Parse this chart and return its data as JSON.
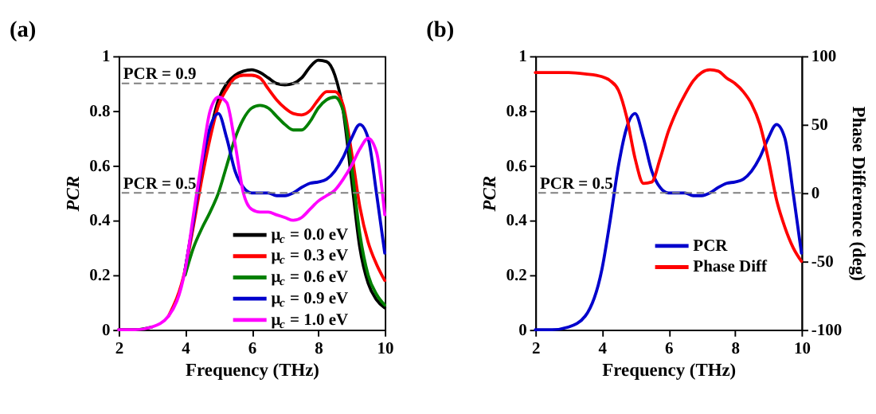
{
  "chart_data": [
    {
      "type": "line",
      "title": "(a)",
      "xlabel": "Frequency (THz)",
      "ylabel": "PCR",
      "xlim": [
        2,
        10
      ],
      "ylim": [
        0,
        1
      ],
      "xticks": [
        2,
        4,
        6,
        8,
        10
      ],
      "yticks": [
        0,
        0.2,
        0.4,
        0.6,
        0.8,
        1
      ],
      "grid": false,
      "legend": "bottom right",
      "marker": "none",
      "line_style": "solid",
      "x": [
        2,
        2.5,
        3,
        3.5,
        4,
        4.25,
        4.5,
        4.75,
        5,
        5.25,
        5.5,
        5.75,
        6,
        6.25,
        6.5,
        6.75,
        7,
        7.25,
        7.5,
        7.75,
        8,
        8.25,
        8.5,
        8.75,
        9,
        9.25,
        9.5,
        9.75,
        10
      ],
      "ref_lines": [
        {
          "axis": "y",
          "value": 0.9,
          "label": "PCR = 0.9",
          "color": "#808080",
          "line_style": "dashed"
        },
        {
          "axis": "y",
          "value": 0.5,
          "label": "PCR = 0.5",
          "color": "#808080",
          "line_style": "dashed"
        }
      ],
      "series": [
        {
          "name": "μ$_{c}$ = 0.0 eV",
          "color": "#000000",
          "values": [
            0,
            0,
            0.01,
            null,
            0.22,
            0.4,
            0.58,
            0.72,
            0.84,
            0.9,
            0.93,
            0.945,
            0.95,
            0.94,
            0.92,
            0.9,
            0.895,
            0.9,
            0.92,
            0.96,
            0.985,
            0.98,
            0.93,
            0.8,
            0.55,
            0.3,
            0.17,
            0.11,
            0.08
          ]
        },
        {
          "name": "μ$_{c}$ = 0.3 eV",
          "color": "#ff0000",
          "values": [
            null,
            null,
            null,
            0.05,
            0.22,
            0.38,
            0.55,
            0.7,
            0.82,
            0.88,
            0.92,
            0.93,
            0.93,
            0.92,
            0.88,
            0.84,
            0.81,
            0.79,
            0.785,
            0.8,
            0.84,
            0.87,
            0.87,
            0.82,
            0.65,
            0.45,
            0.32,
            0.24,
            0.18
          ]
        },
        {
          "name": "μ$_{c}$ = 0.6 eV",
          "color": "#008000",
          "values": [
            null,
            null,
            null,
            null,
            0.2,
            0.3,
            0.37,
            0.43,
            0.5,
            0.6,
            0.7,
            0.77,
            0.81,
            0.82,
            0.81,
            0.78,
            0.75,
            0.73,
            0.73,
            0.76,
            0.81,
            0.84,
            0.85,
            0.8,
            0.6,
            0.35,
            0.2,
            0.13,
            0.09
          ]
        },
        {
          "name": "μ$_{c}$ = 0.9 eV",
          "color": "#0000cc",
          "values": [
            null,
            null,
            null,
            null,
            0.22,
            0.4,
            0.6,
            0.74,
            0.79,
            0.7,
            0.58,
            0.52,
            0.5,
            0.5,
            0.5,
            0.49,
            0.49,
            0.5,
            0.52,
            0.535,
            0.54,
            0.55,
            0.58,
            0.63,
            0.7,
            0.75,
            0.7,
            0.5,
            0.28
          ]
        },
        {
          "name": "μ$_{c}$ = 1.0 eV",
          "color": "#ff00ff",
          "values": [
            0,
            0,
            0.01,
            0.05,
            0.22,
            0.42,
            0.62,
            0.8,
            0.85,
            0.83,
            0.68,
            0.5,
            0.44,
            0.43,
            0.43,
            0.42,
            0.41,
            0.4,
            0.41,
            0.44,
            0.47,
            0.49,
            0.51,
            0.55,
            0.6,
            0.66,
            0.7,
            0.65,
            0.42
          ]
        }
      ]
    },
    {
      "type": "line",
      "title": "(b)",
      "xlabel": "Frequency (THz)",
      "ylabel": "PCR",
      "y2label": "Phase Difference (deg)",
      "xlim": [
        2,
        10
      ],
      "ylim": [
        0,
        1
      ],
      "y2lim": [
        -100,
        100
      ],
      "xticks": [
        2,
        4,
        6,
        8,
        10
      ],
      "yticks": [
        0,
        0.2,
        0.4,
        0.6,
        0.8,
        1
      ],
      "y2ticks": [
        -100,
        -50,
        0,
        50,
        100
      ],
      "grid": false,
      "legend": "bottom",
      "marker": "none",
      "line_style": "solid",
      "x": [
        2,
        2.5,
        3,
        3.5,
        4,
        4.25,
        4.5,
        4.75,
        5,
        5.25,
        5.5,
        5.75,
        6,
        6.25,
        6.5,
        6.75,
        7,
        7.25,
        7.5,
        7.75,
        8,
        8.25,
        8.5,
        8.75,
        9,
        9.25,
        9.5,
        9.75,
        10
      ],
      "ref_lines": [
        {
          "axis": "y",
          "value": 0.5,
          "label": "PCR = 0.5",
          "color": "#808080",
          "line_style": "dashed"
        }
      ],
      "series": [
        {
          "name": "PCR",
          "color": "#0000cc",
          "values": [
            0,
            0,
            0.01,
            0.05,
            0.22,
            0.4,
            0.6,
            0.74,
            0.79,
            0.7,
            0.58,
            0.52,
            0.5,
            0.5,
            0.5,
            0.49,
            0.49,
            0.5,
            0.52,
            0.535,
            0.54,
            0.55,
            0.58,
            0.63,
            0.7,
            0.75,
            0.7,
            0.5,
            0.28
          ]
        },
        {
          "name": "Phase Diff",
          "color": "#ff0000",
          "axis": "y2",
          "values": [
            88,
            88,
            88,
            87,
            85,
            82,
            75,
            55,
            25,
            7,
            8,
            25,
            45,
            60,
            72,
            82,
            88,
            90,
            89,
            84,
            80,
            74,
            65,
            50,
            25,
            -5,
            -25,
            -40,
            -50
          ]
        }
      ]
    }
  ]
}
